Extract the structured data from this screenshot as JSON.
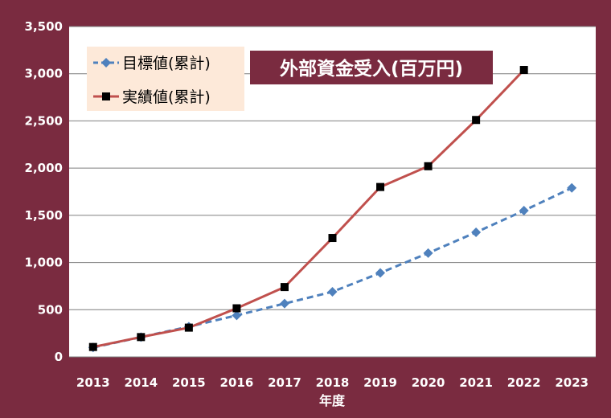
{
  "chart_data": {
    "type": "line",
    "title": "外部資金受入(百万円)",
    "xlabel": "年度",
    "ylabel": "",
    "x": [
      "2013",
      "2014",
      "2015",
      "2016",
      "2017",
      "2018",
      "2019",
      "2020",
      "2021",
      "2022",
      "2023"
    ],
    "ylim": [
      0,
      3500
    ],
    "yticks": [
      0,
      500,
      1000,
      1500,
      2000,
      2500,
      3000,
      3500
    ],
    "ytick_labels": [
      "0",
      "500",
      "1,000",
      "1,500",
      "2,000",
      "2,500",
      "3,000",
      "3,500"
    ],
    "grid": true,
    "legend_position": "top-left",
    "series": [
      {
        "name": "目標値(累計)",
        "color": "#4f81bd",
        "line_style": "dashed",
        "marker": "diamond",
        "values": [
          100,
          210,
          320,
          440,
          565,
          690,
          890,
          1100,
          1320,
          1550,
          1790
        ]
      },
      {
        "name": "実績値(累計)",
        "color": "#c0504d",
        "line_style": "solid",
        "marker": "square",
        "values": [
          105,
          210,
          310,
          515,
          740,
          1260,
          1800,
          2020,
          2510,
          3040,
          null
        ]
      }
    ],
    "colors": {
      "background": "#7a2b40",
      "plot_area": "#ffffff",
      "gridline": "#7f7f7f",
      "legend_background": "#fde9d9",
      "title_background": "#7a2b40",
      "marker_fill": "#000000"
    }
  }
}
